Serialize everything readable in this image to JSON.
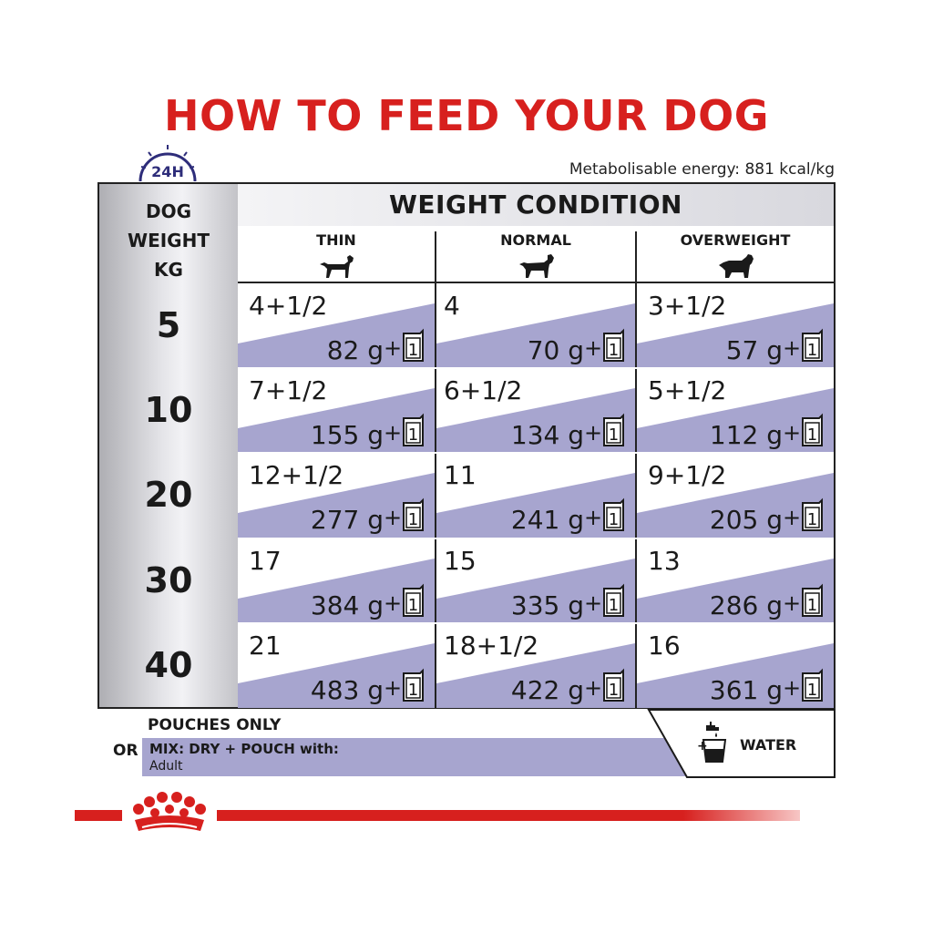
{
  "title": "HOW TO FEED YOUR DOG",
  "clock_label": "24H",
  "energy": "Metabolisable energy: 881 kcal/kg",
  "table": {
    "row_header": [
      "DOG",
      "WEIGHT",
      "KG"
    ],
    "group_header": "WEIGHT CONDITION",
    "columns": [
      "THIN",
      "NORMAL",
      "OVERWEIGHT"
    ],
    "rows": [
      {
        "weight": "5",
        "cells": [
          {
            "pouches": "4+1/2",
            "grams": "82 g"
          },
          {
            "pouches": "4",
            "grams": "70 g"
          },
          {
            "pouches": "3+1/2",
            "grams": "57 g"
          }
        ]
      },
      {
        "weight": "10",
        "cells": [
          {
            "pouches": "7+1/2",
            "grams": "155 g"
          },
          {
            "pouches": "6+1/2",
            "grams": "134 g"
          },
          {
            "pouches": "5+1/2",
            "grams": "112 g"
          }
        ]
      },
      {
        "weight": "20",
        "cells": [
          {
            "pouches": "12+1/2",
            "grams": "277 g"
          },
          {
            "pouches": "11",
            "grams": "241 g"
          },
          {
            "pouches": "9+1/2",
            "grams": "205 g"
          }
        ]
      },
      {
        "weight": "30",
        "cells": [
          {
            "pouches": "17",
            "grams": "384 g"
          },
          {
            "pouches": "15",
            "grams": "335 g"
          },
          {
            "pouches": "13",
            "grams": "286 g"
          }
        ]
      },
      {
        "weight": "40",
        "cells": [
          {
            "pouches": "21",
            "grams": "483 g"
          },
          {
            "pouches": "18+1/2",
            "grams": "422 g"
          },
          {
            "pouches": "16",
            "grams": "361 g"
          }
        ]
      }
    ],
    "plus": "+",
    "pouch_count": "1"
  },
  "footer": {
    "pouches_only": "POUCHES ONLY",
    "or": "OR",
    "mix_line1": "MIX: DRY + POUCH with:",
    "mix_line2": "Adult",
    "water": "WATER",
    "water_plus": "+"
  },
  "colors": {
    "brand_red": "#d7201e",
    "band_purple": "#a7a5cf"
  },
  "icons": [
    "clock-icon",
    "dog-thin-icon",
    "dog-normal-icon",
    "dog-overweight-icon",
    "pouch-icon",
    "water-tap-icon",
    "crown-logo-icon"
  ]
}
